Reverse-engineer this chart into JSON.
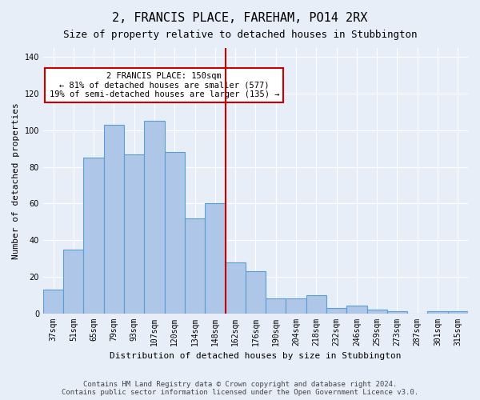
{
  "title1": "2, FRANCIS PLACE, FAREHAM, PO14 2RX",
  "title2": "Size of property relative to detached houses in Stubbington",
  "xlabel": "Distribution of detached houses by size in Stubbington",
  "ylabel": "Number of detached properties",
  "bin_labels": [
    "37sqm",
    "51sqm",
    "65sqm",
    "79sqm",
    "93sqm",
    "107sqm",
    "120sqm",
    "134sqm",
    "148sqm",
    "162sqm",
    "176sqm",
    "190sqm",
    "204sqm",
    "218sqm",
    "232sqm",
    "246sqm",
    "259sqm",
    "273sqm",
    "287sqm",
    "301sqm",
    "315sqm"
  ],
  "bar_values": [
    13,
    35,
    85,
    103,
    87,
    105,
    88,
    52,
    60,
    28,
    23,
    8,
    8,
    10,
    3,
    4,
    2,
    1,
    0,
    1,
    1
  ],
  "bar_color": "#aec6e8",
  "bar_edge_color": "#5a9fd4",
  "vline_x_index": 8.5,
  "vline_color": "#cc0000",
  "annotation_text": "2 FRANCIS PLACE: 150sqm\n← 81% of detached houses are smaller (577)\n19% of semi-detached houses are larger (135) →",
  "annotation_box_color": "#ffffff",
  "annotation_box_edge": "#cc0000",
  "ylim": [
    0,
    145
  ],
  "background_color": "#e8eef8",
  "footer": "Contains HM Land Registry data © Crown copyright and database right 2024.\nContains public sector information licensed under the Open Government Licence v3.0."
}
